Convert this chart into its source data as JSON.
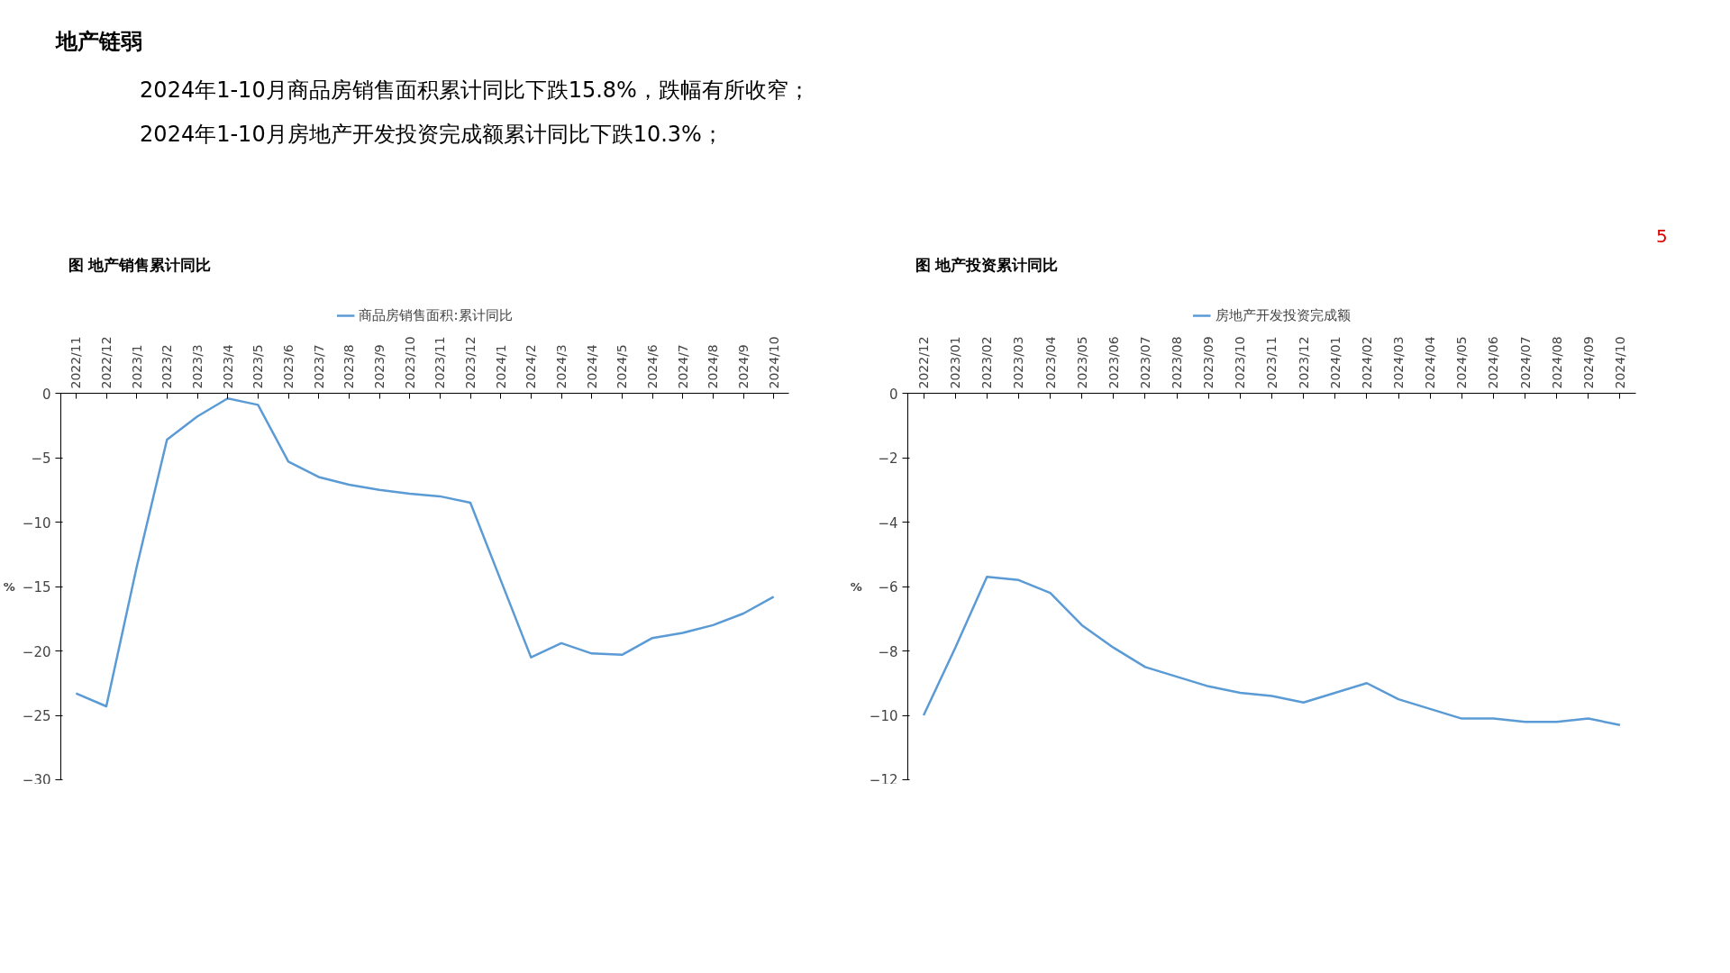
{
  "chart_data": [
    {
      "type": "other",
      "title": "地产链弱",
      "annotations": [
        "2024年1-10月商品房销售面积累计同比下跌15.8%，跌幅有所收窄；",
        "2024年1-10月房地产开发投资完成额累计同比下跌10.3%；",
        "5"
      ]
    },
    {
      "type": "line",
      "title": "图  地产销售累计同比",
      "ylabel": "%",
      "categories": [
        "2022/11",
        "2022/12",
        "2023/1",
        "2023/2",
        "2023/3",
        "2023/4",
        "2023/5",
        "2023/6",
        "2023/7",
        "2023/8",
        "2023/9",
        "2023/10",
        "2023/11",
        "2023/12",
        "2024/1",
        "2024/2",
        "2024/3",
        "2024/4",
        "2024/5",
        "2024/6",
        "2024/7",
        "2024/8",
        "2024/9",
        "2024/10"
      ],
      "series": [
        {
          "name": "商品房销售面积:累计同比",
          "color": "#5b9bd5",
          "values": [
            -23.3,
            -24.3,
            -13.5,
            -3.6,
            -1.8,
            -0.4,
            -0.9,
            -5.3,
            -6.5,
            -7.1,
            -7.5,
            -7.8,
            -8.0,
            -8.5,
            -14.5,
            -20.5,
            -19.4,
            -20.2,
            -20.3,
            -19.0,
            -18.6,
            -18.0,
            -17.1,
            -15.8
          ]
        }
      ],
      "ylim": [
        -30,
        0
      ],
      "yticks": [
        -30,
        -25,
        -20,
        -15,
        -10,
        -5,
        0
      ],
      "grid": false,
      "legend": "top",
      "marker": "none",
      "line_style": "solid"
    },
    {
      "type": "line",
      "title": "图  地产投资累计同比",
      "ylabel": "%",
      "categories": [
        "2022/12",
        "2023/01",
        "2023/02",
        "2023/03",
        "2023/04",
        "2023/05",
        "2023/06",
        "2023/07",
        "2023/08",
        "2023/09",
        "2023/10",
        "2023/11",
        "2023/12",
        "2024/01",
        "2024/02",
        "2024/03",
        "2024/04",
        "2024/05",
        "2024/06",
        "2024/07",
        "2024/08",
        "2024/09",
        "2024/10"
      ],
      "series": [
        {
          "name": "房地产开发投资完成额",
          "color": "#5b9bd5",
          "values": [
            -10.0,
            -7.9,
            -5.7,
            -5.8,
            -6.2,
            -7.2,
            -7.9,
            -8.5,
            -8.8,
            -9.1,
            -9.3,
            -9.4,
            -9.6,
            -9.3,
            -9.0,
            -9.5,
            -9.8,
            -10.1,
            -10.1,
            -10.2,
            -10.2,
            -10.1,
            -10.3
          ]
        }
      ],
      "ylim": [
        -12,
        0
      ],
      "yticks": [
        -12,
        -10,
        -8,
        -6,
        -4,
        -2,
        0
      ],
      "grid": false,
      "legend": "top",
      "marker": "none",
      "line_style": "solid"
    }
  ]
}
